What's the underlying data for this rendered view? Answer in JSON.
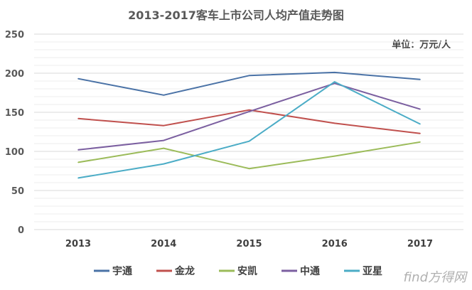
{
  "chart_data": {
    "type": "line",
    "title": "2013-2017客车上市公司人均产值走势图",
    "unit_label": "单位：万元/人",
    "categories": [
      "2013",
      "2014",
      "2015",
      "2016",
      "2017"
    ],
    "ylim": [
      0,
      250
    ],
    "yticks": [
      0,
      50,
      100,
      150,
      200,
      250
    ],
    "grid": true,
    "legend_position": "bottom",
    "series": [
      {
        "name": "宇通",
        "color": "#4a72a6",
        "values": [
          193,
          172,
          197,
          201,
          192
        ]
      },
      {
        "name": "金龙",
        "color": "#c0504d",
        "values": [
          142,
          133,
          153,
          136,
          123
        ]
      },
      {
        "name": "安凯",
        "color": "#9bbb59",
        "values": [
          86,
          104,
          78,
          94,
          112
        ]
      },
      {
        "name": "中通",
        "color": "#7b5fa0",
        "values": [
          102,
          114,
          151,
          187,
          154
        ]
      },
      {
        "name": "亚星",
        "color": "#4bacc6",
        "values": [
          66,
          84,
          113,
          189,
          135
        ]
      }
    ]
  },
  "watermark": "find方得网"
}
